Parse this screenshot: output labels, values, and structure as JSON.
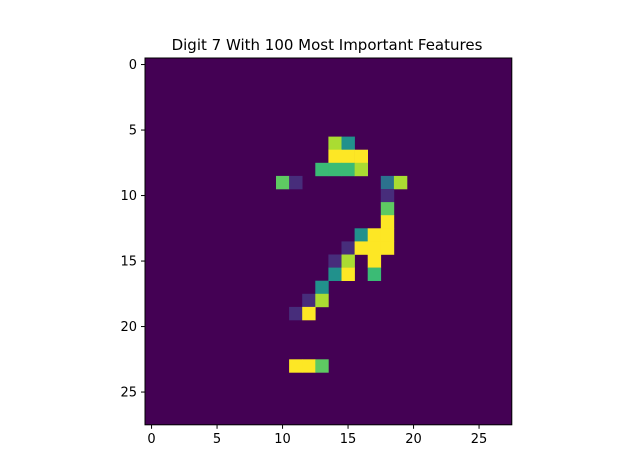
{
  "chart_data": {
    "type": "heatmap",
    "title": "Digit 7 With 100 Most Important Features",
    "xlabel": "",
    "ylabel": "",
    "rows": 28,
    "cols": 28,
    "x_ticks": [
      0,
      5,
      10,
      15,
      20,
      25
    ],
    "y_ticks": [
      0,
      5,
      10,
      15,
      20,
      25
    ],
    "xlim": [
      -0.5,
      27.5
    ],
    "ylim": [
      27.5,
      -0.5
    ],
    "colormap": "viridis",
    "background_color": "#440154",
    "palette": {
      "1": "#472d7b",
      "2": "#2c728e",
      "3": "#21918c",
      "4": "#3bbb75",
      "5": "#5ec962",
      "6": "#aadc32",
      "7": "#fde725"
    },
    "cells": [
      {
        "row": 6,
        "col": 14,
        "level": 6
      },
      {
        "row": 6,
        "col": 15,
        "level": 3
      },
      {
        "row": 7,
        "col": 14,
        "level": 7
      },
      {
        "row": 7,
        "col": 15,
        "level": 7
      },
      {
        "row": 7,
        "col": 16,
        "level": 7
      },
      {
        "row": 8,
        "col": 13,
        "level": 4
      },
      {
        "row": 8,
        "col": 14,
        "level": 4
      },
      {
        "row": 8,
        "col": 15,
        "level": 4
      },
      {
        "row": 8,
        "col": 16,
        "level": 6
      },
      {
        "row": 9,
        "col": 10,
        "level": 5
      },
      {
        "row": 9,
        "col": 11,
        "level": 1
      },
      {
        "row": 9,
        "col": 18,
        "level": 2
      },
      {
        "row": 9,
        "col": 19,
        "level": 6
      },
      {
        "row": 10,
        "col": 18,
        "level": 1
      },
      {
        "row": 11,
        "col": 18,
        "level": 5
      },
      {
        "row": 12,
        "col": 18,
        "level": 7
      },
      {
        "row": 13,
        "col": 16,
        "level": 3
      },
      {
        "row": 13,
        "col": 17,
        "level": 7
      },
      {
        "row": 13,
        "col": 18,
        "level": 7
      },
      {
        "row": 14,
        "col": 15,
        "level": 1
      },
      {
        "row": 14,
        "col": 16,
        "level": 7
      },
      {
        "row": 14,
        "col": 17,
        "level": 7
      },
      {
        "row": 14,
        "col": 18,
        "level": 7
      },
      {
        "row": 15,
        "col": 14,
        "level": 1
      },
      {
        "row": 15,
        "col": 15,
        "level": 6
      },
      {
        "row": 15,
        "col": 17,
        "level": 7
      },
      {
        "row": 16,
        "col": 14,
        "level": 3
      },
      {
        "row": 16,
        "col": 15,
        "level": 7
      },
      {
        "row": 16,
        "col": 17,
        "level": 4
      },
      {
        "row": 17,
        "col": 13,
        "level": 3
      },
      {
        "row": 18,
        "col": 12,
        "level": 1
      },
      {
        "row": 18,
        "col": 13,
        "level": 6
      },
      {
        "row": 19,
        "col": 11,
        "level": 1
      },
      {
        "row": 19,
        "col": 12,
        "level": 7
      },
      {
        "row": 23,
        "col": 11,
        "level": 7
      },
      {
        "row": 23,
        "col": 12,
        "level": 7
      },
      {
        "row": 23,
        "col": 13,
        "level": 5
      }
    ]
  }
}
